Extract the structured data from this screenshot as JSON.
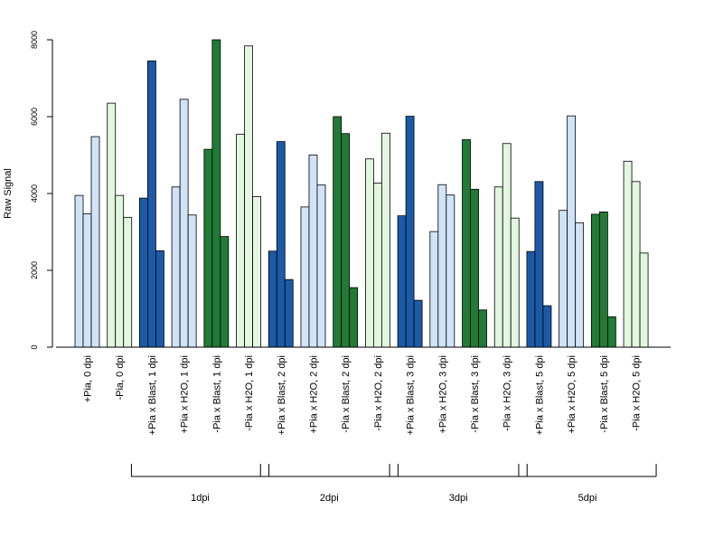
{
  "chart_data": {
    "type": "bar",
    "ylabel": "Raw Signal",
    "xlabel": "",
    "ylim": [
      0,
      8000
    ],
    "yticks": [
      "0",
      "2000",
      "4000",
      "6000",
      "8000"
    ],
    "categories": [
      "+Pia, 0 dpi",
      "-Pia, 0 dpi",
      "+Pia x Blast, 1 dpi",
      "+Pia x H2O, 1 dpi",
      "-Pia x Blast, 1 dpi",
      "-Pia x H2O, 1 dpi",
      "+Pia x Blast, 2 dpi",
      "+Pia x H2O, 2 dpi",
      "-Pia x Blast, 2 dpi",
      "-Pia x H2O, 2 dpi",
      "+Pia x Blast, 3 dpi",
      "+Pia x H2O, 3 dpi",
      "-Pia x Blast, 3 dpi",
      "-Pia x H2O, 3 dpi",
      "+Pia x Blast, 5 dpi",
      "+Pia x H2O, 5 dpi",
      "-Pia x Blast, 5 dpi",
      "-Pia x H2O, 5 dpi"
    ],
    "values": [
      [
        3950,
        3470,
        5480
      ],
      [
        6350,
        3950,
        3380
      ],
      [
        3880,
        7450,
        2510
      ],
      [
        4170,
        6450,
        3440
      ],
      [
        5150,
        8000,
        2880
      ],
      [
        5540,
        7840,
        3920
      ],
      [
        2500,
        5350,
        1760
      ],
      [
        3650,
        5000,
        4220
      ],
      [
        6000,
        5560,
        1550
      ],
      [
        4900,
        4270,
        5570
      ],
      [
        3420,
        6010,
        1220
      ],
      [
        3010,
        4230,
        3960
      ],
      [
        5400,
        4110,
        970
      ],
      [
        4170,
        5300,
        3360
      ],
      [
        2490,
        4310,
        1080
      ],
      [
        3560,
        6020,
        3240
      ],
      [
        3460,
        3520,
        790
      ],
      [
        4840,
        4310,
        2450
      ]
    ],
    "bar_colors": [
      "#d0e3f7",
      "#e3f7e0",
      "#1c5aa8",
      "#d0e3f7",
      "#217a35",
      "#e3f7e0",
      "#1c5aa8",
      "#d0e3f7",
      "#217a35",
      "#e3f7e0",
      "#1c5aa8",
      "#d0e3f7",
      "#217a35",
      "#e3f7e0",
      "#1c5aa8",
      "#d0e3f7",
      "#217a35",
      "#e3f7e0"
    ],
    "groups": [
      {
        "label": "1dpi",
        "from": 2,
        "to": 5
      },
      {
        "label": "2dpi",
        "from": 6,
        "to": 9
      },
      {
        "label": "3dpi",
        "from": 10,
        "to": 13
      },
      {
        "label": "5dpi",
        "from": 14,
        "to": 17
      }
    ],
    "grid": false,
    "legend": "none"
  }
}
